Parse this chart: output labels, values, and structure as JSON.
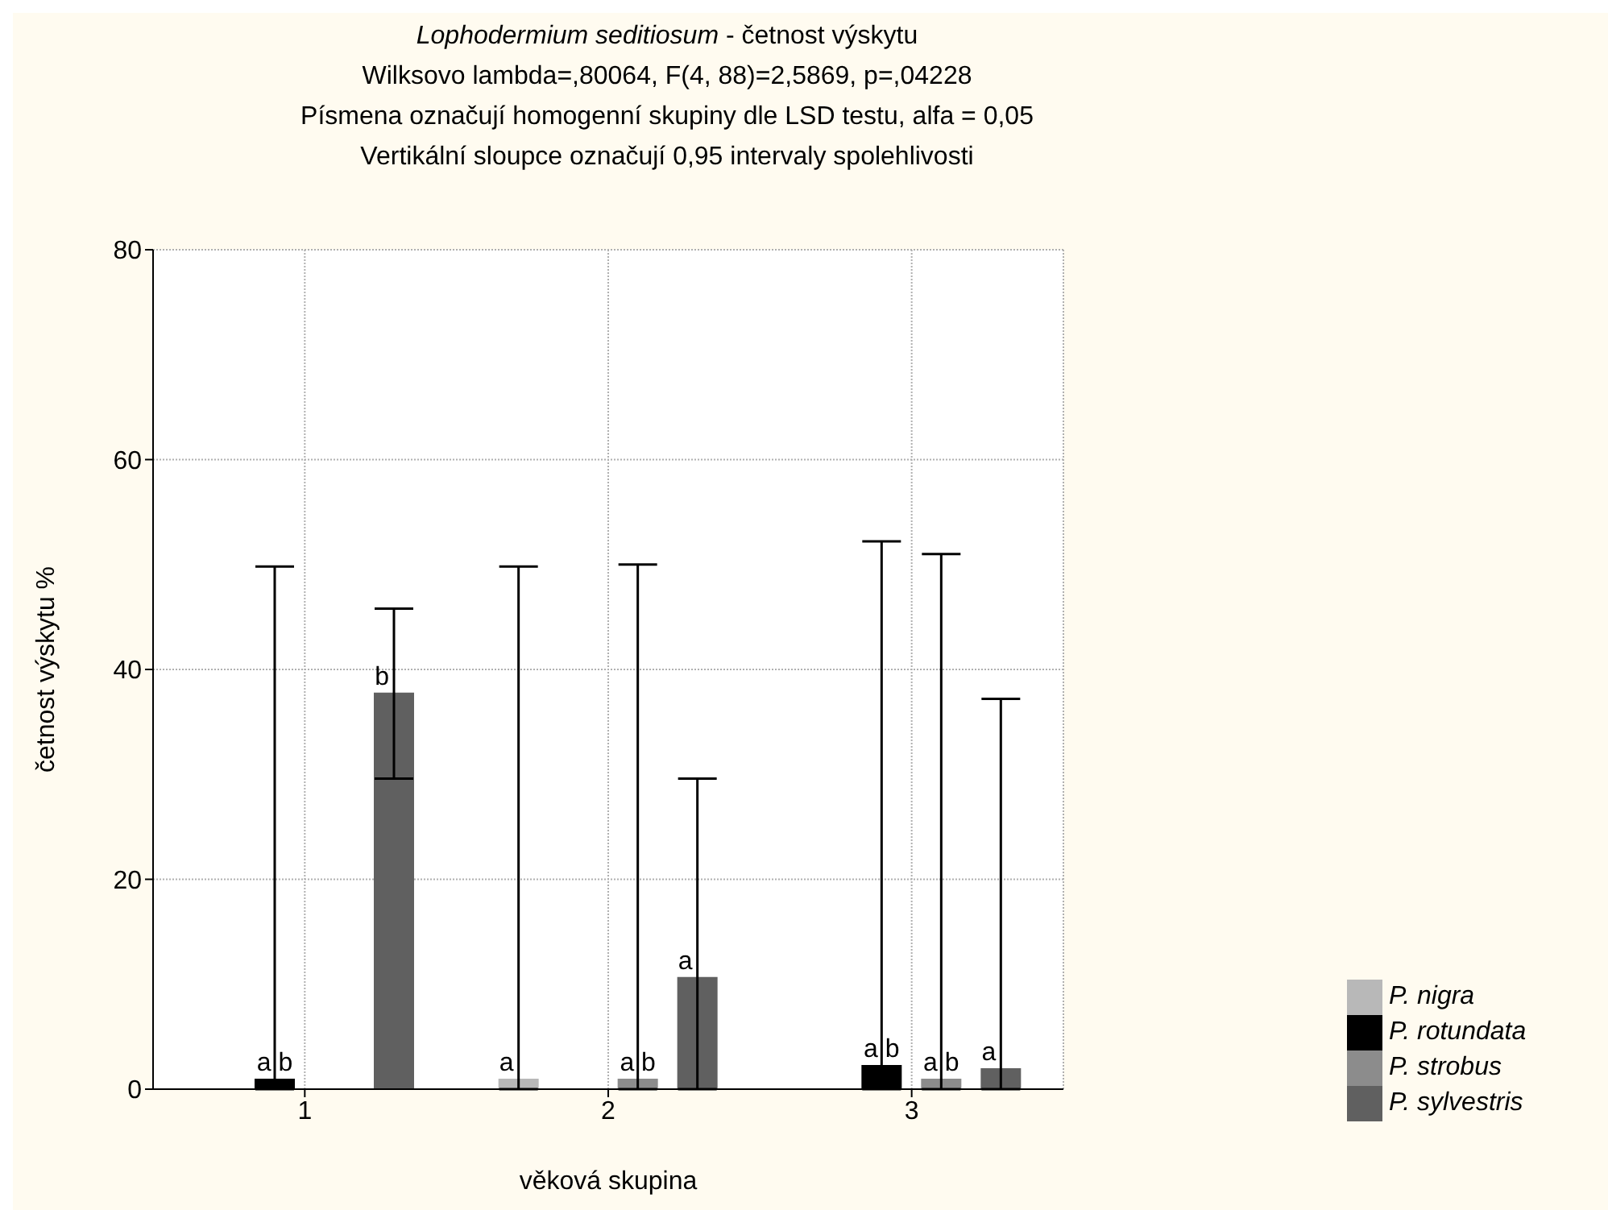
{
  "chart_data": {
    "type": "bar",
    "title": "Lophodermium seditiosum - četnost výskytu",
    "subtitle": "Wilksovo lambda=,80064, F(4, 88)=2,5869, p=,04228\nPísmena označují homogenní skupiny dle LSD testu, alfa = 0,05\nVertikální sloupce označují 0,95 intervaly spolehlivosti",
    "xlabel": "věková skupina",
    "ylabel": "četnost výskytu %",
    "categories": [
      "1",
      "2",
      "3"
    ],
    "series": [
      {
        "name": "P. nigra",
        "color": "#b8b8b8",
        "values": [
          0,
          1.0,
          0
        ],
        "errors": [
          null,
          [
            0,
            49.8
          ],
          null
        ],
        "value_labels": [
          null,
          "a",
          null
        ]
      },
      {
        "name": "P. rotundata",
        "color": "#000000",
        "values": [
          1.0,
          0,
          2.3
        ],
        "errors": [
          [
            0,
            49.8
          ],
          null,
          [
            0,
            52.2
          ]
        ],
        "value_labels": [
          "a b",
          null,
          "a b"
        ]
      },
      {
        "name": "P. strobus",
        "color": "#8c8c8c",
        "values": [
          0,
          1.0,
          1.0
        ],
        "errors": [
          null,
          [
            0,
            50.0
          ],
          [
            0,
            51.0
          ]
        ],
        "value_labels": [
          null,
          "a b",
          "a b"
        ]
      },
      {
        "name": "P. sylvestris",
        "color": "#606060",
        "values": [
          37.8,
          10.7,
          2.0
        ],
        "errors": [
          [
            29.6,
            45.8
          ],
          [
            0,
            29.6
          ],
          [
            0,
            37.2
          ]
        ],
        "value_labels": [
          "b",
          "a",
          "a"
        ]
      }
    ],
    "ylim": [
      0,
      80
    ],
    "yticks": [
      0,
      20,
      40,
      60,
      80
    ],
    "grid": true,
    "legend": "bottom right"
  }
}
